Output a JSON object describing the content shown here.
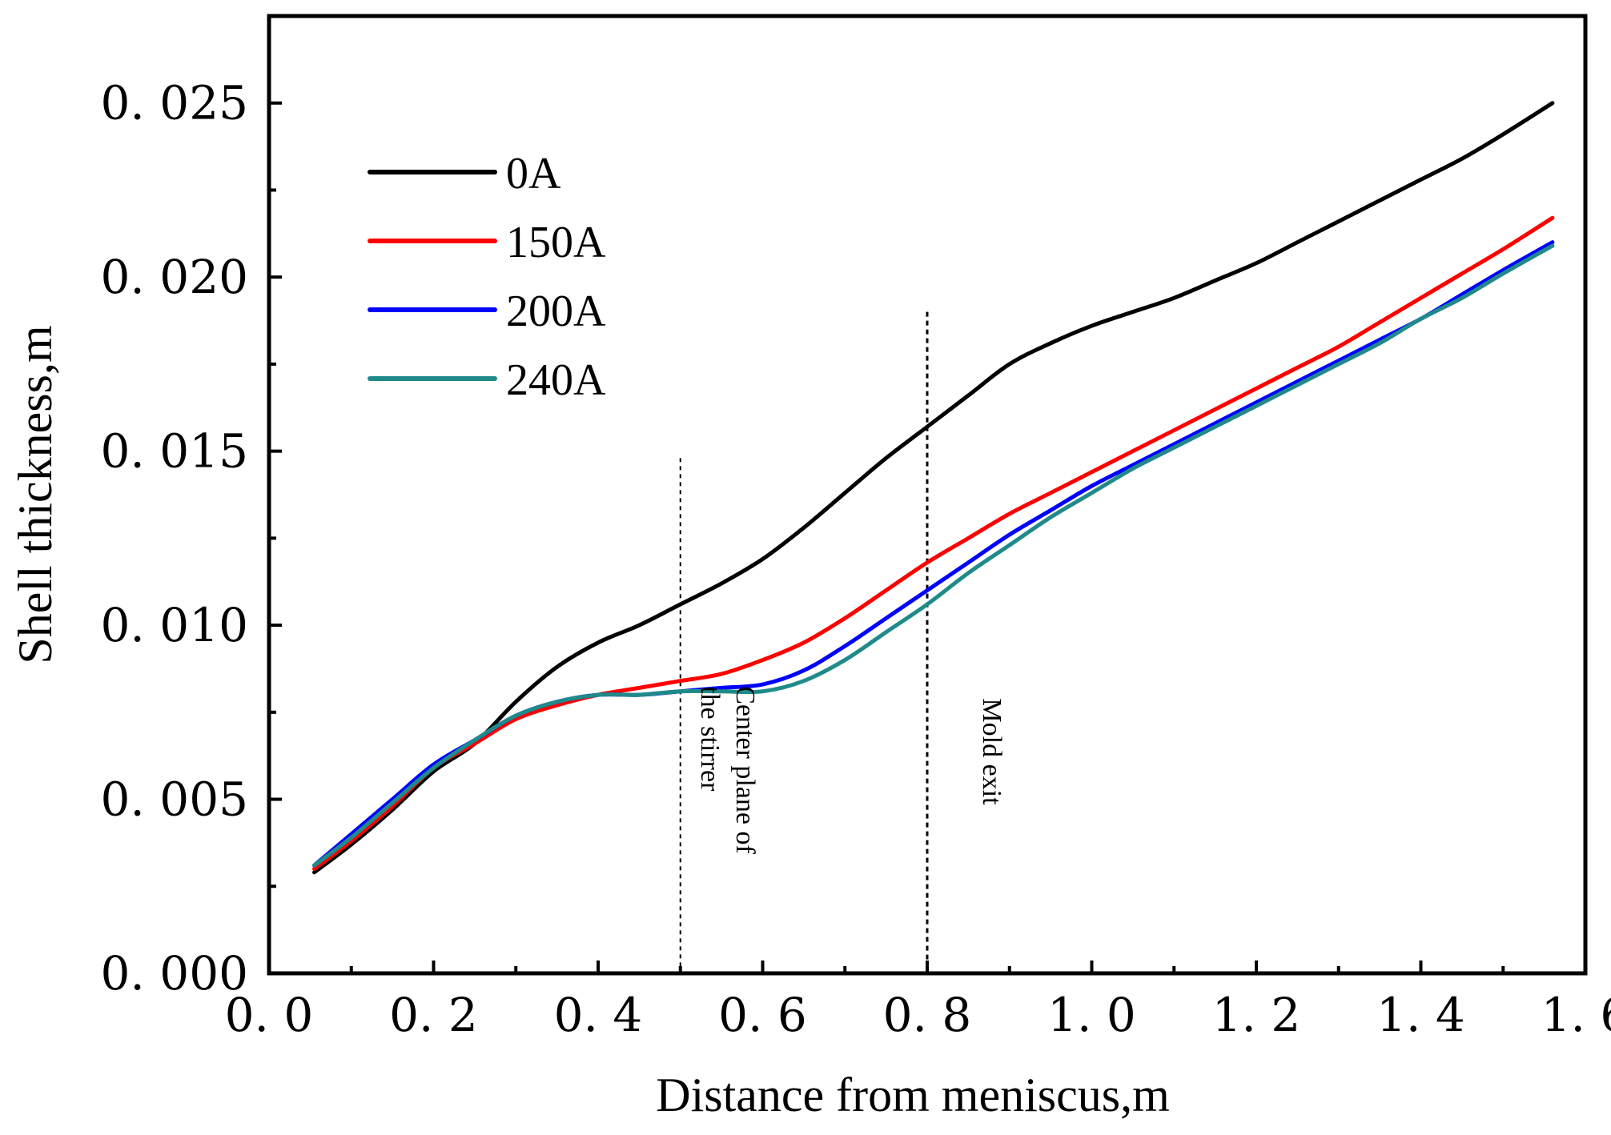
{
  "chart_data": {
    "type": "line",
    "title": "",
    "xlabel": "Distance from meniscus,m",
    "ylabel": "Shell thickness,m",
    "xlim": [
      0.0,
      1.6
    ],
    "ylim": [
      0.0,
      0.0275
    ],
    "xticks": [
      0.0,
      0.2,
      0.4,
      0.6,
      0.8,
      1.0,
      1.2,
      1.4,
      1.6
    ],
    "xtick_labels": [
      "0. 0",
      "0. 2",
      "0. 4",
      "0. 6",
      "0. 8",
      "1. 0",
      "1. 2",
      "1. 4",
      "1. 6"
    ],
    "xminor": [
      0.1,
      0.3,
      0.5,
      0.7,
      0.9,
      1.1,
      1.3,
      1.5
    ],
    "yticks": [
      0.0,
      0.005,
      0.01,
      0.015,
      0.02,
      0.025
    ],
    "ytick_labels": [
      "0. 000",
      "0. 005",
      "0. 010",
      "0. 015",
      "0. 020",
      "0. 025"
    ],
    "yminor": [
      0.0025,
      0.0075,
      0.0125,
      0.0175,
      0.0225
    ],
    "grid": false,
    "legend": {
      "position": "top-left"
    },
    "series": [
      {
        "name": "0A",
        "color": "#000000",
        "x": [
          0.055,
          0.1,
          0.15,
          0.2,
          0.25,
          0.3,
          0.35,
          0.4,
          0.45,
          0.5,
          0.55,
          0.6,
          0.65,
          0.7,
          0.75,
          0.8,
          0.85,
          0.9,
          0.95,
          1.0,
          1.05,
          1.1,
          1.15,
          1.2,
          1.25,
          1.3,
          1.35,
          1.4,
          1.45,
          1.5,
          1.56
        ],
        "y": [
          0.0029,
          0.0037,
          0.0047,
          0.0058,
          0.0066,
          0.0078,
          0.0088,
          0.0095,
          0.01,
          0.0106,
          0.0112,
          0.0119,
          0.0128,
          0.0138,
          0.0148,
          0.0157,
          0.0166,
          0.0175,
          0.0181,
          0.0186,
          0.019,
          0.0194,
          0.0199,
          0.0204,
          0.021,
          0.0216,
          0.0222,
          0.0228,
          0.0234,
          0.0241,
          0.025
        ]
      },
      {
        "name": "150A",
        "color": "#ff0000",
        "x": [
          0.055,
          0.1,
          0.15,
          0.2,
          0.25,
          0.3,
          0.35,
          0.4,
          0.45,
          0.5,
          0.55,
          0.6,
          0.65,
          0.7,
          0.75,
          0.8,
          0.85,
          0.9,
          0.95,
          1.0,
          1.05,
          1.1,
          1.15,
          1.2,
          1.25,
          1.3,
          1.35,
          1.4,
          1.45,
          1.5,
          1.56
        ],
        "y": [
          0.003,
          0.0038,
          0.0048,
          0.0059,
          0.0066,
          0.0073,
          0.0077,
          0.008,
          0.0082,
          0.0084,
          0.0086,
          0.009,
          0.0095,
          0.0102,
          0.011,
          0.0118,
          0.0125,
          0.0132,
          0.0138,
          0.0144,
          0.015,
          0.0156,
          0.0162,
          0.0168,
          0.0174,
          0.018,
          0.0187,
          0.0194,
          0.0201,
          0.0208,
          0.0217
        ]
      },
      {
        "name": "200A",
        "color": "#0000ff",
        "x": [
          0.055,
          0.1,
          0.15,
          0.2,
          0.25,
          0.3,
          0.35,
          0.4,
          0.45,
          0.5,
          0.55,
          0.6,
          0.65,
          0.7,
          0.75,
          0.8,
          0.85,
          0.9,
          0.95,
          1.0,
          1.05,
          1.1,
          1.15,
          1.2,
          1.25,
          1.3,
          1.35,
          1.4,
          1.45,
          1.5,
          1.56
        ],
        "y": [
          0.0031,
          0.004,
          0.005,
          0.006,
          0.0067,
          0.0074,
          0.0078,
          0.008,
          0.008,
          0.0081,
          0.0082,
          0.0083,
          0.0087,
          0.0094,
          0.0102,
          0.011,
          0.0118,
          0.0126,
          0.0133,
          0.014,
          0.0146,
          0.0152,
          0.0158,
          0.0164,
          0.017,
          0.0176,
          0.0182,
          0.0188,
          0.0195,
          0.0202,
          0.021
        ]
      },
      {
        "name": "240A",
        "color": "#1f8a8a",
        "x": [
          0.055,
          0.1,
          0.15,
          0.2,
          0.25,
          0.3,
          0.35,
          0.4,
          0.45,
          0.5,
          0.55,
          0.6,
          0.65,
          0.7,
          0.75,
          0.8,
          0.85,
          0.9,
          0.95,
          1.0,
          1.05,
          1.1,
          1.15,
          1.2,
          1.25,
          1.3,
          1.35,
          1.4,
          1.45,
          1.5,
          1.56
        ],
        "y": [
          0.0031,
          0.0039,
          0.0049,
          0.0059,
          0.0067,
          0.0074,
          0.0078,
          0.008,
          0.008,
          0.0081,
          0.0081,
          0.0081,
          0.0084,
          0.009,
          0.0098,
          0.0106,
          0.0115,
          0.0123,
          0.0131,
          0.0138,
          0.0145,
          0.0151,
          0.0157,
          0.0163,
          0.0169,
          0.0175,
          0.0181,
          0.0188,
          0.0194,
          0.0201,
          0.0209
        ]
      }
    ],
    "annotations": [
      {
        "x": 0.5,
        "y_top": 0.0148,
        "lines": [
          "Center plane of",
          "the stirrer"
        ]
      },
      {
        "x": 0.8,
        "y_top": 0.019,
        "lines": [
          "Mold exit"
        ]
      }
    ]
  }
}
